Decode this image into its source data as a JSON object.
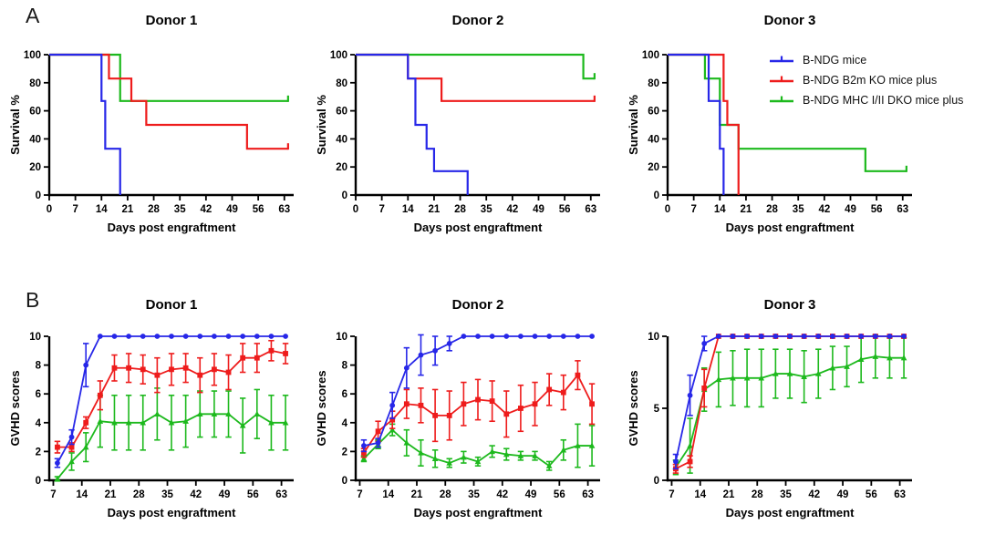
{
  "figure": {
    "panel_a_label": "A",
    "panel_b_label": "B"
  },
  "colors": {
    "blue": "#2727e8",
    "red": "#ee1c1c",
    "green": "#1db91d",
    "axis": "#000000"
  },
  "legend": {
    "items": [
      {
        "label": "B-NDG mice",
        "color": "blue",
        "marker": "circle"
      },
      {
        "label": "B-NDG B2m KO mice plus",
        "color": "red",
        "marker": "square"
      },
      {
        "label": "B-NDG MHC I/II DKO mice plus",
        "color": "green",
        "marker": "triangle"
      }
    ]
  },
  "chart_data": [
    {
      "id": "survival-donor-1",
      "panel": "A",
      "type": "step",
      "title": "Donor 1",
      "xlabel": "Days post engraftment",
      "ylabel": "Survival %",
      "xlim": [
        0,
        65.5
      ],
      "ylim": [
        0,
        100
      ],
      "xticks": [
        0,
        7,
        14,
        21,
        28,
        35,
        42,
        49,
        56,
        63
      ],
      "yticks": [
        0,
        20,
        40,
        60,
        80,
        100
      ],
      "series": [
        {
          "name": "B-NDG mice",
          "color": "blue",
          "steps": [
            [
              0,
              100
            ],
            [
              14,
              100
            ],
            [
              14,
              67
            ],
            [
              15,
              67
            ],
            [
              15,
              33
            ],
            [
              19,
              33
            ],
            [
              19,
              0
            ]
          ]
        },
        {
          "name": "B-NDG B2m KO mice plus",
          "color": "red",
          "end_tick": true,
          "steps": [
            [
              0,
              100
            ],
            [
              16,
              100
            ],
            [
              16,
              83
            ],
            [
              22,
              83
            ],
            [
              22,
              67
            ],
            [
              26,
              67
            ],
            [
              26,
              50
            ],
            [
              53,
              50
            ],
            [
              53,
              33
            ],
            [
              64,
              33
            ]
          ]
        },
        {
          "name": "B-NDG MHC I/II DKO mice plus",
          "color": "green",
          "end_tick": true,
          "steps": [
            [
              0,
              100
            ],
            [
              19,
              100
            ],
            [
              19,
              67
            ],
            [
              64,
              67
            ]
          ]
        }
      ]
    },
    {
      "id": "survival-donor-2",
      "panel": "A",
      "type": "step",
      "title": "Donor 2",
      "xlabel": "Days post engraftment",
      "ylabel": "Survival %",
      "xlim": [
        0,
        65.5
      ],
      "ylim": [
        0,
        100
      ],
      "xticks": [
        0,
        7,
        14,
        21,
        28,
        35,
        42,
        49,
        56,
        63
      ],
      "yticks": [
        0,
        20,
        40,
        60,
        80,
        100
      ],
      "series": [
        {
          "name": "B-NDG mice",
          "color": "blue",
          "steps": [
            [
              0,
              100
            ],
            [
              14,
              100
            ],
            [
              14,
              83
            ],
            [
              16,
              83
            ],
            [
              16,
              50
            ],
            [
              19,
              50
            ],
            [
              19,
              33
            ],
            [
              21,
              33
            ],
            [
              21,
              17
            ],
            [
              30,
              17
            ],
            [
              30,
              0
            ]
          ]
        },
        {
          "name": "B-NDG B2m KO mice plus",
          "color": "red",
          "end_tick": true,
          "steps": [
            [
              0,
              100
            ],
            [
              14,
              100
            ],
            [
              14,
              83
            ],
            [
              23,
              83
            ],
            [
              23,
              67
            ],
            [
              64,
              67
            ]
          ]
        },
        {
          "name": "B-NDG MHC I/II DKO mice plus",
          "color": "green",
          "end_tick": true,
          "steps": [
            [
              0,
              100
            ],
            [
              61,
              100
            ],
            [
              61,
              83
            ],
            [
              64,
              83
            ]
          ]
        }
      ]
    },
    {
      "id": "survival-donor-3",
      "panel": "A",
      "type": "step",
      "title": "Donor 3",
      "xlabel": "Days post engraftment",
      "ylabel": "Survival %",
      "xlim": [
        0,
        65.5
      ],
      "ylim": [
        0,
        100
      ],
      "xticks": [
        0,
        7,
        14,
        21,
        28,
        35,
        42,
        49,
        56,
        63
      ],
      "yticks": [
        0,
        20,
        40,
        60,
        80,
        100
      ],
      "series": [
        {
          "name": "B-NDG mice",
          "color": "blue",
          "steps": [
            [
              0,
              100
            ],
            [
              11,
              100
            ],
            [
              11,
              67
            ],
            [
              14,
              67
            ],
            [
              14,
              33
            ],
            [
              15,
              33
            ],
            [
              15,
              0
            ]
          ]
        },
        {
          "name": "B-NDG B2m KO mice plus",
          "color": "red",
          "steps": [
            [
              0,
              100
            ],
            [
              15,
              100
            ],
            [
              15,
              67
            ],
            [
              16,
              67
            ],
            [
              16,
              50
            ],
            [
              19,
              50
            ],
            [
              19,
              0
            ]
          ]
        },
        {
          "name": "B-NDG MHC I/II DKO mice plus",
          "color": "green",
          "end_tick": true,
          "steps": [
            [
              0,
              100
            ],
            [
              10,
              100
            ],
            [
              10,
              83
            ],
            [
              14,
              83
            ],
            [
              14,
              50
            ],
            [
              19,
              50
            ],
            [
              19,
              33
            ],
            [
              53,
              33
            ],
            [
              53,
              17
            ],
            [
              64,
              17
            ]
          ]
        }
      ]
    },
    {
      "id": "gvhd-donor-1",
      "panel": "B",
      "type": "line",
      "title": "Donor 1",
      "xlabel": "Days post engraftment",
      "ylabel": "GVHD scores",
      "xlim": [
        6,
        66
      ],
      "ylim": [
        0,
        10
      ],
      "xticks": [
        7,
        14,
        21,
        28,
        35,
        42,
        49,
        56,
        63
      ],
      "yticks": [
        0,
        2,
        4,
        6,
        8,
        10
      ],
      "x": [
        8,
        11.5,
        15,
        18.5,
        22,
        25.5,
        29,
        32.5,
        36,
        39.5,
        43,
        46.5,
        50,
        53.5,
        57,
        60.5,
        64
      ],
      "series": [
        {
          "name": "B-NDG mice",
          "color": "blue",
          "marker": "circle",
          "values": [
            1.2,
            3.0,
            8.0,
            10,
            10,
            10,
            10,
            10,
            10,
            10,
            10,
            10,
            10,
            10,
            10,
            10,
            10
          ],
          "errors": [
            0.3,
            0.5,
            1.5,
            0,
            0,
            0,
            0,
            0,
            0,
            0,
            0,
            0,
            0,
            0,
            0,
            0,
            0
          ]
        },
        {
          "name": "B-NDG B2m KO mice plus",
          "color": "red",
          "marker": "square",
          "values": [
            2.3,
            2.3,
            4.0,
            5.9,
            7.8,
            7.8,
            7.7,
            7.3,
            7.7,
            7.8,
            7.3,
            7.7,
            7.5,
            8.5,
            8.5,
            9.0,
            8.8
          ],
          "errors": [
            0.4,
            0.3,
            0.4,
            1.0,
            0.9,
            1.0,
            1.0,
            1.2,
            1.1,
            1.0,
            1.2,
            1.1,
            1.2,
            1.0,
            1.0,
            0.7,
            0.7
          ]
        },
        {
          "name": "B-NDG MHC I/II DKO mice plus",
          "color": "green",
          "marker": "triangle",
          "values": [
            0.1,
            1.3,
            2.3,
            4.1,
            4.0,
            4.0,
            4.0,
            4.6,
            4.0,
            4.1,
            4.6,
            4.6,
            4.6,
            3.8,
            4.6,
            4.0,
            4.0
          ],
          "errors": [
            0.15,
            0.6,
            1.0,
            1.8,
            1.9,
            1.9,
            1.9,
            1.8,
            1.9,
            1.8,
            1.6,
            1.6,
            1.6,
            1.9,
            1.7,
            1.9,
            1.9
          ]
        }
      ]
    },
    {
      "id": "gvhd-donor-2",
      "panel": "B",
      "type": "line",
      "title": "Donor 2",
      "xlabel": "Days post engraftment",
      "ylabel": "GVHD scores",
      "xlim": [
        6,
        66
      ],
      "ylim": [
        0,
        10
      ],
      "xticks": [
        7,
        14,
        21,
        28,
        35,
        42,
        49,
        56,
        63
      ],
      "yticks": [
        0,
        2,
        4,
        6,
        8,
        10
      ],
      "x": [
        8,
        11.5,
        15,
        18.5,
        22,
        25.5,
        29,
        32.5,
        36,
        39.5,
        43,
        46.5,
        50,
        53.5,
        57,
        60.5,
        64
      ],
      "series": [
        {
          "name": "B-NDG mice",
          "color": "blue",
          "marker": "circle",
          "values": [
            2.4,
            2.6,
            5.2,
            7.8,
            8.7,
            9.0,
            9.5,
            10,
            10,
            10,
            10,
            10,
            10,
            10,
            10,
            10,
            10
          ],
          "errors": [
            0.4,
            0.3,
            0.9,
            1.4,
            1.4,
            1.0,
            0.5,
            0,
            0,
            0,
            0,
            0,
            0,
            0,
            0,
            0,
            0
          ]
        },
        {
          "name": "B-NDG B2m KO mice plus",
          "color": "red",
          "marker": "square",
          "values": [
            1.9,
            3.4,
            4.2,
            5.3,
            5.2,
            4.5,
            4.5,
            5.3,
            5.6,
            5.5,
            4.6,
            5.0,
            5.3,
            6.3,
            6.1,
            7.3,
            5.3
          ],
          "errors": [
            0.3,
            0.7,
            0.6,
            1.0,
            1.2,
            1.8,
            1.7,
            1.5,
            1.4,
            1.4,
            1.6,
            1.6,
            1.5,
            1.1,
            1.2,
            1.0,
            1.4
          ]
        },
        {
          "name": "B-NDG MHC I/II DKO mice plus",
          "color": "green",
          "marker": "triangle",
          "values": [
            1.5,
            2.5,
            3.5,
            2.6,
            1.9,
            1.5,
            1.2,
            1.6,
            1.3,
            2.0,
            1.8,
            1.7,
            1.7,
            1.0,
            2.1,
            2.4,
            2.4
          ],
          "errors": [
            0.2,
            0.3,
            0.4,
            0.9,
            0.9,
            0.6,
            0.3,
            0.4,
            0.3,
            0.4,
            0.4,
            0.3,
            0.3,
            0.3,
            0.7,
            1.5,
            1.4
          ]
        }
      ]
    },
    {
      "id": "gvhd-donor-3",
      "panel": "B",
      "type": "line",
      "title": "Donor 3",
      "xlabel": "Days post engraftment",
      "ylabel": "GVHD scores",
      "xlim": [
        6,
        66
      ],
      "ylim": [
        0,
        10
      ],
      "xticks": [
        7,
        14,
        21,
        28,
        35,
        42,
        49,
        56,
        63
      ],
      "yticks": [
        0,
        5,
        10
      ],
      "x": [
        8,
        11.5,
        15,
        18.5,
        22,
        25.5,
        29,
        32.5,
        36,
        39.5,
        43,
        46.5,
        50,
        53.5,
        57,
        60.5,
        64
      ],
      "series": [
        {
          "name": "B-NDG mice",
          "color": "blue",
          "marker": "circle",
          "values": [
            1.3,
            5.9,
            9.5,
            10,
            10,
            10,
            10,
            10,
            10,
            10,
            10,
            10,
            10,
            10,
            10,
            10,
            10
          ],
          "errors": [
            0.5,
            1.4,
            0.5,
            0,
            0,
            0,
            0,
            0,
            0,
            0,
            0,
            0,
            0,
            0,
            0,
            0,
            0
          ]
        },
        {
          "name": "B-NDG B2m KO mice plus",
          "color": "red",
          "marker": "square",
          "values": [
            0.8,
            1.3,
            6.4,
            10,
            10,
            10,
            10,
            10,
            10,
            10,
            10,
            10,
            10,
            10,
            10,
            10,
            10
          ],
          "errors": [
            0.3,
            0.4,
            1.3,
            0,
            0,
            0,
            0,
            0,
            0,
            0,
            0,
            0,
            0,
            0,
            0,
            0,
            0
          ]
        },
        {
          "name": "B-NDG MHC I/II DKO mice plus",
          "color": "green",
          "marker": "triangle",
          "values": [
            0.9,
            2.4,
            6.3,
            7.0,
            7.1,
            7.1,
            7.1,
            7.4,
            7.4,
            7.2,
            7.4,
            7.8,
            7.9,
            8.4,
            8.6,
            8.5,
            8.5
          ],
          "errors": [
            0.5,
            1.9,
            1.5,
            1.9,
            1.9,
            2.0,
            2.0,
            1.7,
            1.7,
            1.8,
            1.7,
            1.5,
            1.4,
            1.6,
            1.5,
            1.4,
            1.4
          ]
        }
      ]
    }
  ]
}
